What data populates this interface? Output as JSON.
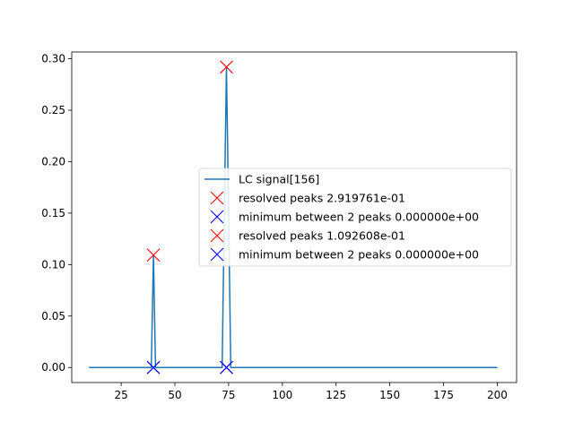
{
  "chart_data": {
    "type": "line",
    "title": "",
    "xlabel": "",
    "ylabel": "",
    "xlim": [
      2,
      209
    ],
    "ylim": [
      -0.0146,
      0.3066
    ],
    "xticks": [
      25,
      50,
      75,
      100,
      125,
      150,
      175,
      200
    ],
    "yticks": [
      0.0,
      0.05,
      0.1,
      0.15,
      0.2,
      0.25,
      0.3
    ],
    "ytick_labels": [
      "0.00",
      "0.05",
      "0.10",
      "0.15",
      "0.20",
      "0.25",
      "0.30"
    ],
    "grid": false,
    "legend_position": "center-right",
    "series": [
      {
        "name": "LC signal[156]",
        "kind": "line",
        "color": "#1f77b4",
        "x": [
          10,
          39,
          40,
          41,
          72,
          73,
          74,
          75,
          76,
          200
        ],
        "y": [
          0,
          0,
          0.1092608,
          0,
          0,
          0.15,
          0.2919761,
          0.15,
          0,
          0
        ]
      },
      {
        "name": "resolved peaks 2.919761e-01",
        "kind": "marker",
        "marker": "x",
        "color": "#ff0000",
        "x": [
          74
        ],
        "y": [
          0.2919761
        ]
      },
      {
        "name": "minimum between 2 peaks 0.000000e+00",
        "kind": "marker",
        "marker": "x",
        "color": "#0000ff",
        "x": [
          40,
          74
        ],
        "y": [
          0,
          0
        ]
      },
      {
        "name": "resolved peaks 1.092608e-01",
        "kind": "marker",
        "marker": "x",
        "color": "#ff0000",
        "x": [
          40
        ],
        "y": [
          0.1092608
        ]
      },
      {
        "name": "minimum between 2 peaks 0.000000e+00",
        "kind": "marker",
        "marker": "x",
        "color": "#0000ff",
        "x": [
          40,
          74
        ],
        "y": [
          0,
          0
        ]
      }
    ]
  }
}
